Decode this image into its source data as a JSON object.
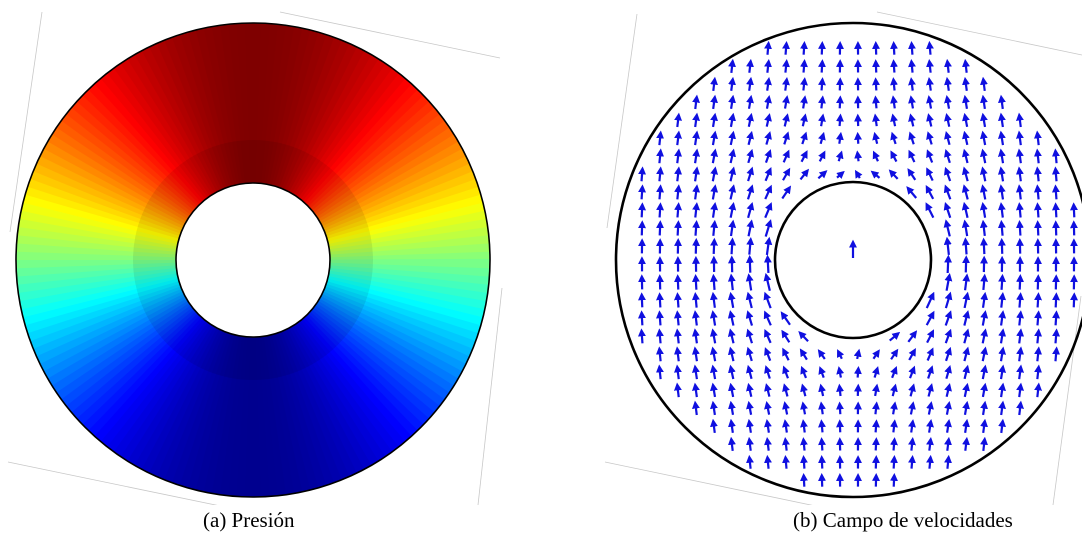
{
  "figure": {
    "panels": [
      {
        "caption": "(a) Presión",
        "content": "pressure-annulus",
        "colormap": [
          "#7f0000",
          "#ff0000",
          "#ff8000",
          "#ffff00",
          "#80ff80",
          "#00ffff",
          "#0080ff",
          "#0000ff",
          "#00008f"
        ]
      },
      {
        "caption": "(b) Campo de velocidades",
        "content": "velocity-field",
        "arrow_color": "#1010e0",
        "boundary_color": "#000000"
      }
    ]
  }
}
